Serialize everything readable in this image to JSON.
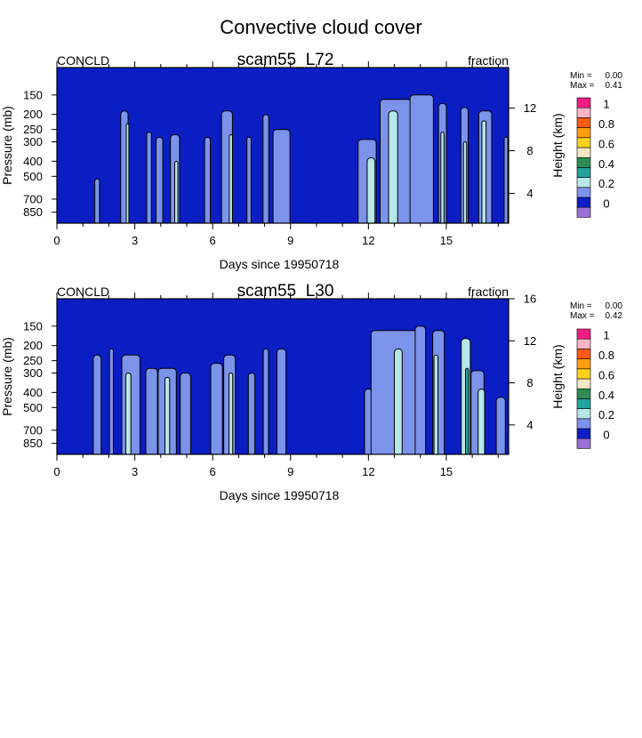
{
  "title": "Convective cloud cover",
  "palette": {
    "background_fill": "#0b1ec4",
    "light_blue": "#7b93ea",
    "pale_cyan": "#b7e7e7",
    "teal": "#22a39c",
    "contour_line": "#000000"
  },
  "colorbar_colors": [
    "#9b6fd6",
    "#0b1ec4",
    "#7b93ea",
    "#b7e7e7",
    "#22a39c",
    "#2e8b57",
    "#f5e8c6",
    "#ffd21e",
    "#ff9f0f",
    "#ff5a14",
    "#ffb4c8",
    "#f01e82"
  ],
  "chart_data": [
    {
      "type": "contour",
      "variable": "CONCLD",
      "subtitle": "scam55_L72",
      "units": "fraction",
      "xlabel": "Days since 19950718",
      "ylabel": "Pressure (mb)",
      "ylabel_right": "Height (km)",
      "xlim": [
        0,
        17.4
      ],
      "x_ticks": [
        0,
        3,
        6,
        9,
        12,
        15
      ],
      "pressure_ticks": [
        150,
        200,
        250,
        300,
        400,
        500,
        700,
        850
      ],
      "pressure_range": [
        100,
        1000
      ],
      "height_ticks": [
        4,
        8,
        12
      ],
      "height_range": [
        1.2,
        15.8
      ],
      "stats_min_label": "Min =",
      "stats_min": "0.00",
      "stats_max_label": "Max =",
      "stats_max": "0.41",
      "colorbar_labels": [
        "0",
        "0.2",
        "0.4",
        "0.6",
        "0.8",
        "1"
      ],
      "cloud_cells": [
        {
          "day": 1.55,
          "width": 0.18,
          "top_hPa": 520,
          "level": 2
        },
        {
          "day": 2.6,
          "width": 0.28,
          "top_hPa": 190,
          "level": 2
        },
        {
          "day": 2.72,
          "width": 0.1,
          "top_hPa": 230,
          "level": 3
        },
        {
          "day": 3.55,
          "width": 0.18,
          "top_hPa": 260,
          "level": 2
        },
        {
          "day": 3.95,
          "width": 0.26,
          "top_hPa": 280,
          "level": 2
        },
        {
          "day": 4.55,
          "width": 0.35,
          "top_hPa": 270,
          "level": 2
        },
        {
          "day": 4.6,
          "width": 0.12,
          "top_hPa": 400,
          "level": 3
        },
        {
          "day": 5.8,
          "width": 0.22,
          "top_hPa": 280,
          "level": 2
        },
        {
          "day": 6.55,
          "width": 0.42,
          "top_hPa": 190,
          "level": 2
        },
        {
          "day": 6.7,
          "width": 0.12,
          "top_hPa": 270,
          "level": 3
        },
        {
          "day": 7.4,
          "width": 0.16,
          "top_hPa": 280,
          "level": 2
        },
        {
          "day": 8.05,
          "width": 0.22,
          "top_hPa": 200,
          "level": 2
        },
        {
          "day": 8.65,
          "width": 0.65,
          "top_hPa": 250,
          "level": 2
        },
        {
          "day": 11.95,
          "width": 0.7,
          "top_hPa": 290,
          "level": 2
        },
        {
          "day": 12.1,
          "width": 0.3,
          "top_hPa": 380,
          "level": 3
        },
        {
          "day": 13.05,
          "width": 1.2,
          "top_hPa": 160,
          "level": 2
        },
        {
          "day": 12.95,
          "width": 0.35,
          "top_hPa": 190,
          "level": 3
        },
        {
          "day": 14.05,
          "width": 0.9,
          "top_hPa": 150,
          "level": 2
        },
        {
          "day": 14.85,
          "width": 0.3,
          "top_hPa": 170,
          "level": 2
        },
        {
          "day": 14.85,
          "width": 0.12,
          "top_hPa": 260,
          "level": 3
        },
        {
          "day": 15.7,
          "width": 0.28,
          "top_hPa": 180,
          "level": 2
        },
        {
          "day": 15.72,
          "width": 0.12,
          "top_hPa": 300,
          "level": 3
        },
        {
          "day": 16.5,
          "width": 0.5,
          "top_hPa": 190,
          "level": 2
        },
        {
          "day": 16.45,
          "width": 0.16,
          "top_hPa": 220,
          "level": 3
        },
        {
          "day": 17.3,
          "width": 0.14,
          "top_hPa": 280,
          "level": 2
        }
      ]
    },
    {
      "type": "contour",
      "variable": "CONCLD",
      "subtitle": "scam55_L30",
      "units": "fraction",
      "xlabel": "Days since 19950718",
      "ylabel": "Pressure (mb)",
      "ylabel_right": "Height (km)",
      "xlim": [
        0,
        17.4
      ],
      "x_ticks": [
        0,
        3,
        6,
        9,
        12,
        15
      ],
      "pressure_ticks": [
        150,
        200,
        250,
        300,
        400,
        500,
        700,
        850
      ],
      "pressure_range": [
        100,
        1000
      ],
      "height_ticks": [
        4,
        8,
        12,
        16
      ],
      "height_range": [
        1.2,
        16
      ],
      "stats_min_label": "Min =",
      "stats_min": "0.00",
      "stats_max_label": "Max =",
      "stats_max": "0.42",
      "colorbar_labels": [
        "0",
        "0.2",
        "0.4",
        "0.6",
        "0.8",
        "1"
      ],
      "cloud_cells": [
        {
          "day": 1.55,
          "width": 0.3,
          "top_hPa": 230,
          "level": 2
        },
        {
          "day": 2.1,
          "width": 0.15,
          "top_hPa": 210,
          "level": 2
        },
        {
          "day": 2.85,
          "width": 0.7,
          "top_hPa": 230,
          "level": 2
        },
        {
          "day": 2.75,
          "width": 0.2,
          "top_hPa": 300,
          "level": 3
        },
        {
          "day": 3.65,
          "width": 0.45,
          "top_hPa": 280,
          "level": 2
        },
        {
          "day": 4.25,
          "width": 0.7,
          "top_hPa": 280,
          "level": 2
        },
        {
          "day": 4.25,
          "width": 0.18,
          "top_hPa": 320,
          "level": 3
        },
        {
          "day": 4.95,
          "width": 0.4,
          "top_hPa": 300,
          "level": 2
        },
        {
          "day": 6.15,
          "width": 0.45,
          "top_hPa": 260,
          "level": 2
        },
        {
          "day": 6.65,
          "width": 0.45,
          "top_hPa": 230,
          "level": 2
        },
        {
          "day": 6.7,
          "width": 0.14,
          "top_hPa": 300,
          "level": 3
        },
        {
          "day": 7.5,
          "width": 0.25,
          "top_hPa": 300,
          "level": 2
        },
        {
          "day": 8.05,
          "width": 0.2,
          "top_hPa": 210,
          "level": 2
        },
        {
          "day": 8.65,
          "width": 0.35,
          "top_hPa": 210,
          "level": 2
        },
        {
          "day": 12.0,
          "width": 0.3,
          "top_hPa": 380,
          "level": 2
        },
        {
          "day": 13.0,
          "width": 1.8,
          "top_hPa": 160,
          "level": 2
        },
        {
          "day": 13.15,
          "width": 0.3,
          "top_hPa": 210,
          "level": 3
        },
        {
          "day": 14.0,
          "width": 0.4,
          "top_hPa": 150,
          "level": 2
        },
        {
          "day": 14.7,
          "width": 0.45,
          "top_hPa": 160,
          "level": 2
        },
        {
          "day": 14.6,
          "width": 0.15,
          "top_hPa": 230,
          "level": 3
        },
        {
          "day": 15.75,
          "width": 0.35,
          "top_hPa": 180,
          "level": 3
        },
        {
          "day": 15.8,
          "width": 0.12,
          "top_hPa": 280,
          "level": 4
        },
        {
          "day": 16.2,
          "width": 0.5,
          "top_hPa": 290,
          "level": 2
        },
        {
          "day": 16.35,
          "width": 0.25,
          "top_hPa": 380,
          "level": 3
        },
        {
          "day": 17.1,
          "width": 0.35,
          "top_hPa": 430,
          "level": 2
        }
      ]
    }
  ]
}
